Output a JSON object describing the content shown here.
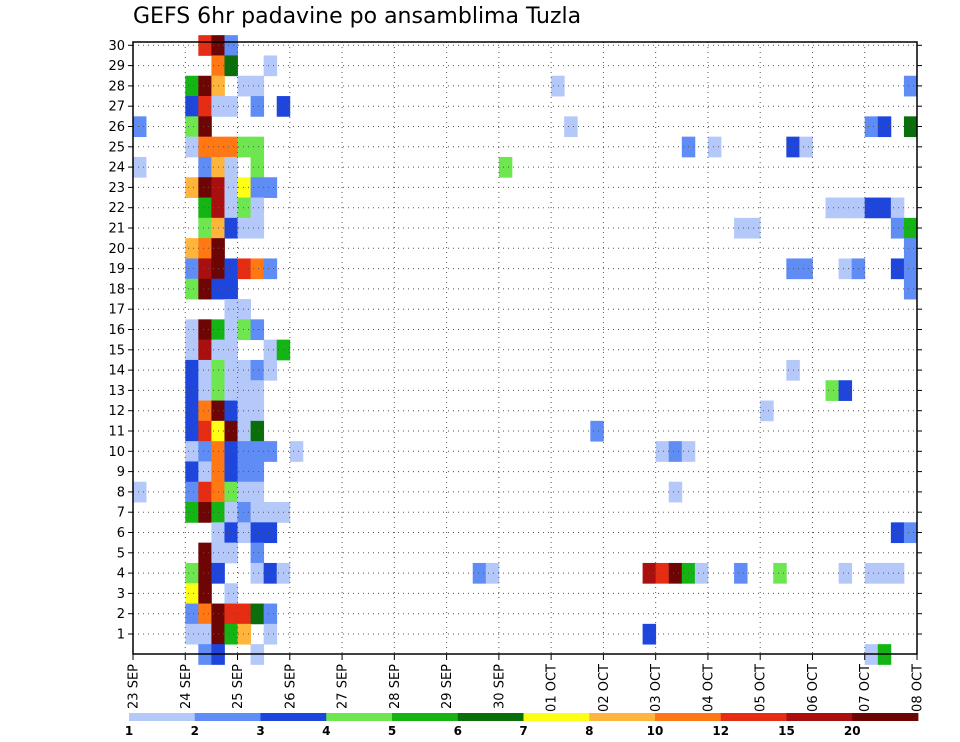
{
  "chart_data": {
    "type": "heatmap",
    "title": "GEFS 6hr padavine po ansamblima Tuzla",
    "xlabel": "",
    "ylabel": "",
    "x_tick_labels": [
      "23 SEP",
      "24 SEP",
      "25 SEP",
      "26 SEP",
      "27 SEP",
      "28 SEP",
      "29 SEP",
      "30 SEP",
      "01 OCT",
      "02 OCT",
      "03 OCT",
      "04 OCT",
      "05 OCT",
      "06 OCT",
      "07 OCT",
      "08 OCT"
    ],
    "y_tick_labels": [
      "1",
      "2",
      "3",
      "4",
      "5",
      "6",
      "7",
      "8",
      "9",
      "10",
      "11",
      "12",
      "13",
      "14",
      "15",
      "16",
      "17",
      "18",
      "19",
      "20",
      "21",
      "22",
      "23",
      "24",
      "25",
      "26",
      "27",
      "28",
      "29",
      "30"
    ],
    "time_steps_per_day": 4,
    "grid": true,
    "colorbar": {
      "labels": [
        "1",
        "2",
        "3",
        "4",
        "5",
        "6",
        "7",
        "8",
        "10",
        "12",
        "15",
        "20"
      ],
      "colors": [
        "#b4c8fa",
        "#5f8cf5",
        "#1e46dc",
        "#6ee650",
        "#14b414",
        "#0a6e0a",
        "#ffff14",
        "#ffb43c",
        "#ff7814",
        "#e62d14",
        "#aa0f0f",
        "#6e0505"
      ]
    },
    "cells": [
      [
        30,
        5,
        9
      ],
      [
        30,
        6,
        11
      ],
      [
        30,
        7,
        1
      ],
      [
        29,
        6,
        8
      ],
      [
        29,
        7,
        5
      ],
      [
        29,
        10,
        0
      ],
      [
        28,
        4,
        4
      ],
      [
        28,
        5,
        11
      ],
      [
        28,
        6,
        7
      ],
      [
        28,
        8,
        0
      ],
      [
        28,
        9,
        0
      ],
      [
        28,
        32,
        0
      ],
      [
        28,
        59,
        1
      ],
      [
        27,
        4,
        2
      ],
      [
        27,
        5,
        9
      ],
      [
        27,
        6,
        0
      ],
      [
        27,
        7,
        0
      ],
      [
        27,
        9,
        1
      ],
      [
        27,
        11,
        2
      ],
      [
        26,
        0,
        1
      ],
      [
        26,
        4,
        3
      ],
      [
        26,
        5,
        11
      ],
      [
        26,
        33,
        0
      ],
      [
        26,
        56,
        1
      ],
      [
        26,
        57,
        2
      ],
      [
        26,
        59,
        5
      ],
      [
        25,
        4,
        0
      ],
      [
        25,
        5,
        8
      ],
      [
        25,
        6,
        8
      ],
      [
        25,
        7,
        8
      ],
      [
        25,
        8,
        3
      ],
      [
        25,
        9,
        3
      ],
      [
        25,
        42,
        1
      ],
      [
        25,
        44,
        0
      ],
      [
        25,
        50,
        2
      ],
      [
        25,
        51,
        0
      ],
      [
        24,
        0,
        0
      ],
      [
        24,
        5,
        1
      ],
      [
        24,
        6,
        7
      ],
      [
        24,
        7,
        0
      ],
      [
        24,
        9,
        3
      ],
      [
        24,
        28,
        3
      ],
      [
        23,
        4,
        7
      ],
      [
        23,
        5,
        11
      ],
      [
        23,
        6,
        10
      ],
      [
        23,
        7,
        0
      ],
      [
        23,
        8,
        6
      ],
      [
        23,
        9,
        1
      ],
      [
        23,
        10,
        1
      ],
      [
        22,
        5,
        4
      ],
      [
        22,
        6,
        10
      ],
      [
        22,
        7,
        0
      ],
      [
        22,
        8,
        3
      ],
      [
        22,
        9,
        0
      ],
      [
        22,
        53,
        0
      ],
      [
        22,
        54,
        0
      ],
      [
        22,
        55,
        0
      ],
      [
        22,
        56,
        2
      ],
      [
        22,
        57,
        2
      ],
      [
        22,
        58,
        0
      ],
      [
        21,
        5,
        3
      ],
      [
        21,
        6,
        7
      ],
      [
        21,
        7,
        2
      ],
      [
        21,
        8,
        0
      ],
      [
        21,
        9,
        0
      ],
      [
        21,
        46,
        0
      ],
      [
        21,
        47,
        0
      ],
      [
        21,
        58,
        1
      ],
      [
        21,
        59,
        4
      ],
      [
        20,
        4,
        7
      ],
      [
        20,
        5,
        8
      ],
      [
        20,
        6,
        11
      ],
      [
        20,
        59,
        1
      ],
      [
        19,
        4,
        1
      ],
      [
        19,
        5,
        10
      ],
      [
        19,
        6,
        11
      ],
      [
        19,
        7,
        2
      ],
      [
        19,
        8,
        9
      ],
      [
        19,
        9,
        8
      ],
      [
        19,
        10,
        1
      ],
      [
        19,
        50,
        1
      ],
      [
        19,
        51,
        1
      ],
      [
        19,
        54,
        0
      ],
      [
        19,
        55,
        1
      ],
      [
        19,
        58,
        2
      ],
      [
        19,
        59,
        1
      ],
      [
        18,
        4,
        3
      ],
      [
        18,
        5,
        11
      ],
      [
        18,
        6,
        2
      ],
      [
        18,
        7,
        2
      ],
      [
        18,
        59,
        1
      ],
      [
        17,
        7,
        0
      ],
      [
        17,
        8,
        0
      ],
      [
        16,
        4,
        0
      ],
      [
        16,
        5,
        11
      ],
      [
        16,
        6,
        4
      ],
      [
        16,
        7,
        0
      ],
      [
        16,
        8,
        3
      ],
      [
        16,
        9,
        1
      ],
      [
        15,
        4,
        0
      ],
      [
        15,
        5,
        10
      ],
      [
        15,
        6,
        0
      ],
      [
        15,
        7,
        0
      ],
      [
        15,
        10,
        0
      ],
      [
        15,
        11,
        4
      ],
      [
        14,
        4,
        2
      ],
      [
        14,
        5,
        0
      ],
      [
        14,
        6,
        3
      ],
      [
        14,
        7,
        0
      ],
      [
        14,
        8,
        0
      ],
      [
        14,
        9,
        1
      ],
      [
        14,
        10,
        0
      ],
      [
        14,
        50,
        0
      ],
      [
        13,
        4,
        2
      ],
      [
        13,
        5,
        0
      ],
      [
        13,
        6,
        3
      ],
      [
        13,
        7,
        0
      ],
      [
        13,
        8,
        0
      ],
      [
        13,
        9,
        0
      ],
      [
        13,
        53,
        3
      ],
      [
        13,
        54,
        2
      ],
      [
        12,
        4,
        2
      ],
      [
        12,
        5,
        8
      ],
      [
        12,
        6,
        11
      ],
      [
        12,
        7,
        2
      ],
      [
        12,
        8,
        0
      ],
      [
        12,
        9,
        0
      ],
      [
        12,
        48,
        0
      ],
      [
        11,
        4,
        2
      ],
      [
        11,
        5,
        9
      ],
      [
        11,
        6,
        6
      ],
      [
        11,
        7,
        11
      ],
      [
        11,
        8,
        0
      ],
      [
        11,
        9,
        5
      ],
      [
        11,
        35,
        1
      ],
      [
        10,
        4,
        0
      ],
      [
        10,
        5,
        1
      ],
      [
        10,
        6,
        8
      ],
      [
        10,
        7,
        2
      ],
      [
        10,
        8,
        1
      ],
      [
        10,
        9,
        1
      ],
      [
        10,
        10,
        1
      ],
      [
        10,
        12,
        0
      ],
      [
        10,
        40,
        0
      ],
      [
        10,
        41,
        1
      ],
      [
        10,
        42,
        0
      ],
      [
        9,
        4,
        2
      ],
      [
        9,
        5,
        0
      ],
      [
        9,
        6,
        8
      ],
      [
        9,
        7,
        2
      ],
      [
        9,
        8,
        1
      ],
      [
        9,
        9,
        1
      ],
      [
        8,
        0,
        0
      ],
      [
        8,
        4,
        1
      ],
      [
        8,
        5,
        9
      ],
      [
        8,
        6,
        8
      ],
      [
        8,
        7,
        3
      ],
      [
        8,
        8,
        0
      ],
      [
        8,
        9,
        0
      ],
      [
        8,
        41,
        0
      ],
      [
        7,
        4,
        4
      ],
      [
        7,
        5,
        11
      ],
      [
        7,
        6,
        4
      ],
      [
        7,
        7,
        0
      ],
      [
        7,
        8,
        1
      ],
      [
        7,
        9,
        0
      ],
      [
        7,
        10,
        0
      ],
      [
        7,
        11,
        0
      ],
      [
        6,
        6,
        0
      ],
      [
        6,
        7,
        2
      ],
      [
        6,
        8,
        0
      ],
      [
        6,
        9,
        2
      ],
      [
        6,
        10,
        2
      ],
      [
        6,
        58,
        2
      ],
      [
        6,
        59,
        1
      ],
      [
        5,
        5,
        11
      ],
      [
        5,
        6,
        0
      ],
      [
        5,
        7,
        0
      ],
      [
        5,
        9,
        1
      ],
      [
        4,
        4,
        3
      ],
      [
        4,
        5,
        11
      ],
      [
        4,
        6,
        2
      ],
      [
        4,
        9,
        0
      ],
      [
        4,
        10,
        2
      ],
      [
        4,
        11,
        0
      ],
      [
        4,
        26,
        1
      ],
      [
        4,
        27,
        0
      ],
      [
        4,
        39,
        10
      ],
      [
        4,
        40,
        9
      ],
      [
        4,
        41,
        11
      ],
      [
        4,
        42,
        4
      ],
      [
        4,
        43,
        0
      ],
      [
        4,
        46,
        1
      ],
      [
        4,
        49,
        3
      ],
      [
        4,
        54,
        0
      ],
      [
        4,
        56,
        0
      ],
      [
        4,
        57,
        0
      ],
      [
        4,
        58,
        0
      ],
      [
        3,
        4,
        6
      ],
      [
        3,
        5,
        11
      ],
      [
        3,
        7,
        0
      ],
      [
        2,
        4,
        1
      ],
      [
        2,
        5,
        8
      ],
      [
        2,
        6,
        11
      ],
      [
        2,
        7,
        9
      ],
      [
        2,
        8,
        9
      ],
      [
        2,
        9,
        5
      ],
      [
        2,
        10,
        1
      ],
      [
        1,
        4,
        0
      ],
      [
        1,
        5,
        0
      ],
      [
        1,
        6,
        11
      ],
      [
        1,
        7,
        4
      ],
      [
        1,
        8,
        7
      ],
      [
        1,
        10,
        0
      ],
      [
        1,
        39,
        2
      ],
      [
        0,
        5,
        1
      ],
      [
        0,
        6,
        2
      ],
      [
        0,
        9,
        0
      ],
      [
        0,
        56,
        0
      ],
      [
        0,
        57,
        4
      ]
    ]
  }
}
